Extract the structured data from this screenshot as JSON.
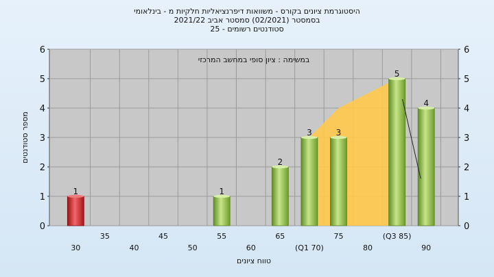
{
  "header": {
    "line1": "היסטוגרמת ציונים בקורס - משוואות דיפרנציאליות חלקיות מ - בינלאומי",
    "line2": "בסמסטר  (02/2021)  סמסטר אביב 2021/22",
    "line3": "סטודנטים רשומים - 25"
  },
  "chart_data": {
    "type": "bar",
    "annotation": "במשימה : ציון סופי במחשב המרכזי",
    "ylabel": "מספר סטודנטים",
    "xlabel": "טווח ציונים",
    "ylim": [
      0,
      6
    ],
    "yticks": [
      0,
      1,
      2,
      3,
      4,
      5,
      6
    ],
    "grid": true,
    "xtick_labels": [
      {
        "x": 30,
        "label": "30",
        "row": 2
      },
      {
        "x": 35,
        "label": "35",
        "row": 1
      },
      {
        "x": 40,
        "label": "40",
        "row": 2
      },
      {
        "x": 45,
        "label": "45",
        "row": 1
      },
      {
        "x": 50,
        "label": "50",
        "row": 2
      },
      {
        "x": 55,
        "label": "55",
        "row": 1
      },
      {
        "x": 60,
        "label": "60",
        "row": 2
      },
      {
        "x": 65,
        "label": "65",
        "row": 1
      },
      {
        "x": 70,
        "label": "(Q1 70)",
        "row": 2
      },
      {
        "x": 75,
        "label": "75",
        "row": 1
      },
      {
        "x": 80,
        "label": "80",
        "row": 2
      },
      {
        "x": 85,
        "label": "(Q3 85)",
        "row": 1
      },
      {
        "x": 90,
        "label": "90",
        "row": 2
      }
    ],
    "bars": [
      {
        "x": 30,
        "value": 1,
        "label": "1",
        "color": "#d8242a"
      },
      {
        "x": 55,
        "value": 1,
        "label": "1",
        "color": "#8fc24a"
      },
      {
        "x": 65,
        "value": 2,
        "label": "2",
        "color": "#8fc24a"
      },
      {
        "x": 70,
        "value": 3,
        "label": "3",
        "color": "#8fc24a"
      },
      {
        "x": 75,
        "value": 3,
        "label": "3",
        "color": "#8fc24a"
      },
      {
        "x": 85,
        "value": 5,
        "label": "5",
        "color": "#8fc24a"
      },
      {
        "x": 90,
        "value": 4,
        "label": "4",
        "color": "#8fc24a"
      }
    ],
    "iqr_area": {
      "color": "#ffc94a",
      "points": [
        [
          70,
          3
        ],
        [
          75,
          4
        ],
        [
          85,
          5
        ],
        [
          85,
          0
        ],
        [
          70,
          0
        ]
      ]
    },
    "trend_line": [
      [
        85,
        5
      ],
      [
        90,
        1.6
      ]
    ],
    "colors": {
      "plot_bg": "#c8c8c8",
      "failing": "#d8242a",
      "passing": "#8fc24a",
      "iqr": "#ffc94a"
    }
  }
}
